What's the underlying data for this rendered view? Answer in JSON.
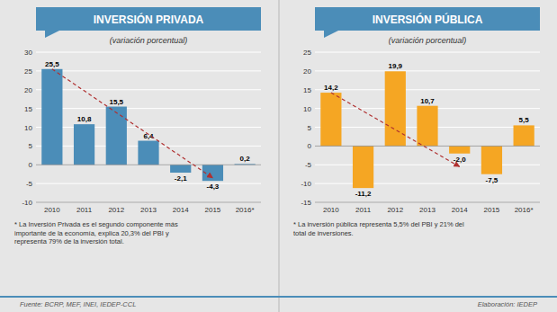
{
  "chart_data": [
    {
      "type": "bar",
      "title": "INVERSIÓN PRIVADA",
      "subtitle": "(variación porcentual)",
      "categories": [
        "2010",
        "2011",
        "2012",
        "2013",
        "2014",
        "2015",
        "2016*"
      ],
      "values": [
        25.5,
        10.8,
        15.5,
        6.4,
        -2.1,
        -4.3,
        0.2
      ],
      "value_labels": [
        "25,5",
        "10,8",
        "15,5",
        "6,4",
        "-2,1",
        "-4,3",
        "0,2"
      ],
      "data_labels": true,
      "color": "#4B8DB8",
      "ylim": [
        -10,
        30
      ],
      "yticks": [
        -10,
        -5,
        0,
        5,
        10,
        15,
        20,
        25,
        30
      ],
      "grid": true,
      "annotations": [
        {
          "type": "arrow",
          "from": {
            "category": "2010",
            "value": 25.5
          },
          "to": {
            "category": "2015",
            "value": -3.5
          },
          "color": "#B03030",
          "line_style": "dashed"
        }
      ],
      "footnote": "* La Inversión Privada es el segundo componente más\nimportante de la economía, explica 20,3% del PBI y\nrepresenta 79% de la inversión total.",
      "source": "Fuente: BCRP, MEF, INEI, IEDEP-CCL"
    },
    {
      "type": "bar",
      "title": "INVERSIÓN PÚBLICA",
      "subtitle": "(variación porcentual)",
      "categories": [
        "2010",
        "2011",
        "2012",
        "2013",
        "2014",
        "2015",
        "2016*"
      ],
      "values": [
        14.2,
        -11.2,
        19.9,
        10.7,
        -2.0,
        -7.5,
        5.5
      ],
      "value_labels": [
        "14,2",
        "-11,2",
        "19,9",
        "10,7",
        "-2,0",
        "-7,5",
        "5,5"
      ],
      "data_labels": true,
      "color": "#F5A623",
      "ylim": [
        -15,
        25
      ],
      "yticks": [
        -15,
        -10,
        -5,
        0,
        5,
        10,
        15,
        20,
        25
      ],
      "grid": true,
      "annotations": [
        {
          "type": "arrow",
          "from": {
            "category": "2010",
            "value": 14.2
          },
          "to": {
            "category": "2014",
            "value": -5.5
          },
          "color": "#B03030",
          "line_style": "dashed"
        }
      ],
      "footnote": "* La inversión pública representa 5,5% del PBI y 21% del\ntotal de inversiones.",
      "source": "Elaboración: IEDEP"
    }
  ]
}
